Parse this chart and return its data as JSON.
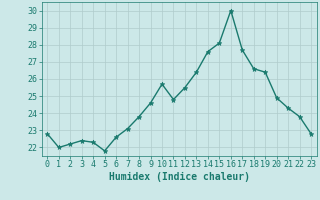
{
  "x": [
    0,
    1,
    2,
    3,
    4,
    5,
    6,
    7,
    8,
    9,
    10,
    11,
    12,
    13,
    14,
    15,
    16,
    17,
    18,
    19,
    20,
    21,
    22,
    23
  ],
  "y": [
    22.8,
    22.0,
    22.2,
    22.4,
    22.3,
    21.8,
    22.6,
    23.1,
    23.8,
    24.6,
    25.7,
    24.8,
    25.5,
    26.4,
    27.6,
    28.1,
    30.0,
    27.7,
    26.6,
    26.4,
    24.9,
    24.3,
    23.8,
    22.8
  ],
  "line_color": "#1a7a6e",
  "marker": "*",
  "marker_color": "#1a7a6e",
  "bg_color": "#cce8e8",
  "grid_color": "#b0cccc",
  "xlabel": "Humidex (Indice chaleur)",
  "ylabel_ticks": [
    22,
    23,
    24,
    25,
    26,
    27,
    28,
    29,
    30
  ],
  "ylim": [
    21.5,
    30.5
  ],
  "xlim": [
    -0.5,
    23.5
  ],
  "xlabel_fontsize": 7,
  "tick_fontsize": 6,
  "line_width": 1.0,
  "marker_size": 3.5
}
